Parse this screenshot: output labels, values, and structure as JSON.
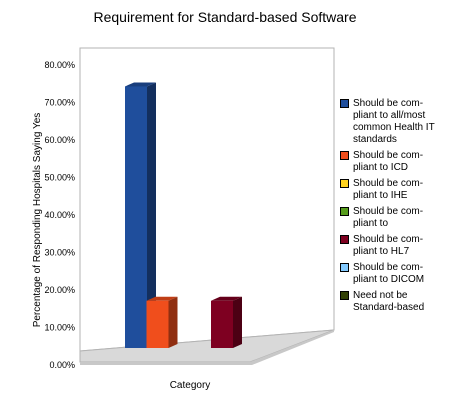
{
  "chart_data": {
    "type": "bar",
    "title": "Requirement for Standard-based Software",
    "xlabel": "Category",
    "ylabel": "Percentage of Responding Hospitals Saying Yes",
    "ylim": [
      0,
      80
    ],
    "ytick_labels": [
      "0.00%",
      "10.00%",
      "20.00%",
      "30.00%",
      "40.00%",
      "50.00%",
      "60.00%",
      "70.00%",
      "80.00%"
    ],
    "grid": false,
    "legend_position": "right",
    "series": [
      {
        "name": "Should be com-\npliant to all/most\ncommon Health IT\nstandards",
        "value": 77.5,
        "color": "#1f4e9c"
      },
      {
        "name": "Should be com-\npliant to ICD",
        "value": 14,
        "color": "#f04e1c"
      },
      {
        "name": "Should be com-\npliant to IHE",
        "value": 0,
        "color": "#ffd320"
      },
      {
        "name": "Should be com-\npliant to",
        "value": 0,
        "color": "#579d1c"
      },
      {
        "name": "Should be com-\npliant to HL7",
        "value": 14,
        "color": "#7e0021"
      },
      {
        "name": "Should be com-\npliant to DICOM",
        "value": 0,
        "color": "#83caff"
      },
      {
        "name": "Need not be\nStandard-based",
        "value": 0,
        "color": "#314004"
      }
    ]
  }
}
